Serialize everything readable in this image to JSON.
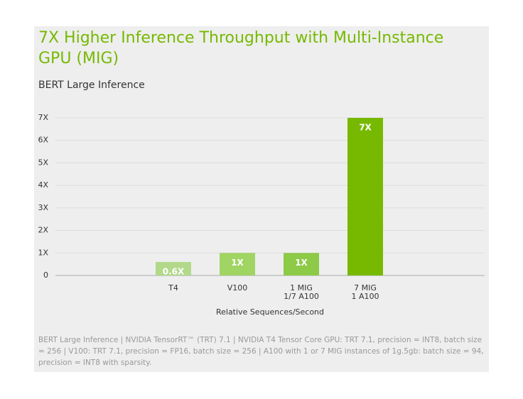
{
  "chart_data": {
    "type": "bar",
    "title": "7X Higher Inference Throughput with Multi-Instance GPU (MIG)",
    "subtitle": "BERT Large Inference",
    "x_label": "Relative Sequences/Second",
    "categories": [
      "T4",
      "V100",
      "1 MIG",
      "7 MIG"
    ],
    "sublabels": [
      null,
      null,
      "1/7 A100",
      "1 A100"
    ],
    "values": [
      0.6,
      1,
      1,
      7
    ],
    "value_labels": [
      "0.6X",
      "1X",
      "1X",
      "7X"
    ],
    "colors": [
      "#b2d98a",
      "#a0d463",
      "#8dca47",
      "#76b900"
    ],
    "ylim": [
      0,
      7
    ],
    "yticks": [
      0,
      {
        "value": 1,
        "label": "1X"
      },
      {
        "value": 2,
        "label": "2X"
      },
      {
        "value": 3,
        "label": "3X"
      },
      {
        "value": 4,
        "label": "4X"
      },
      {
        "value": 5,
        "label": "5X"
      },
      {
        "value": 6,
        "label": "6X"
      },
      {
        "value": 7,
        "label": "7X"
      }
    ],
    "grid": true,
    "footnote": "BERT Large Inference | NVIDIA TensorRT™ (TRT) 7.1 | NVIDIA T4 Tensor Core GPU: TRT 7.1, precision = INT8, batch size = 256 | V100: TRT 7.1, precision = FP16, batch size = 256 | A100 with 1 or 7 MIG instances of 1g.5gb: batch size = 94, precision = INT8 with sparsity."
  }
}
